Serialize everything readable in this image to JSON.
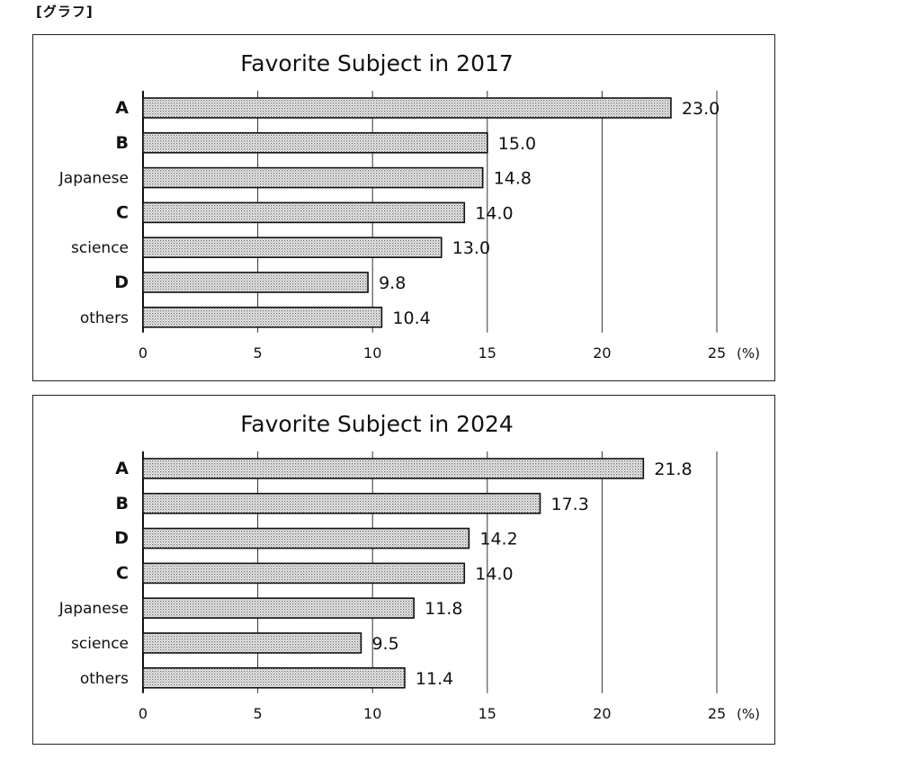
{
  "page": {
    "label": "[グラフ]"
  },
  "chart_data": [
    {
      "type": "bar",
      "orientation": "horizontal",
      "title": "Favorite Subject in 2017",
      "categories": [
        "A",
        "B",
        "Japanese",
        "C",
        "science",
        "D",
        "others"
      ],
      "values": [
        23.0,
        15.0,
        14.8,
        14.0,
        13.0,
        9.8,
        10.4
      ],
      "value_labels": [
        "23.0",
        "15.0",
        "14.8",
        "14.0",
        "13.0",
        "9.8",
        "10.4"
      ],
      "xlim": [
        0,
        25
      ],
      "xticks": [
        "0",
        "5",
        "10",
        "15",
        "20",
        "25"
      ],
      "unit": "(%)",
      "grid": true,
      "bar_pattern": "dotted-gray"
    },
    {
      "type": "bar",
      "orientation": "horizontal",
      "title": "Favorite Subject in 2024",
      "categories": [
        "A",
        "B",
        "D",
        "C",
        "Japanese",
        "science",
        "others"
      ],
      "values": [
        21.8,
        17.3,
        14.2,
        14.0,
        11.8,
        9.5,
        11.4
      ],
      "value_labels": [
        "21.8",
        "17.3",
        "14.2",
        "14.0",
        "11.8",
        "9.5",
        "11.4"
      ],
      "xlim": [
        0,
        25
      ],
      "xticks": [
        "0",
        "5",
        "10",
        "15",
        "20",
        "25"
      ],
      "unit": "(%)",
      "grid": true,
      "bar_pattern": "dotted-gray"
    }
  ]
}
